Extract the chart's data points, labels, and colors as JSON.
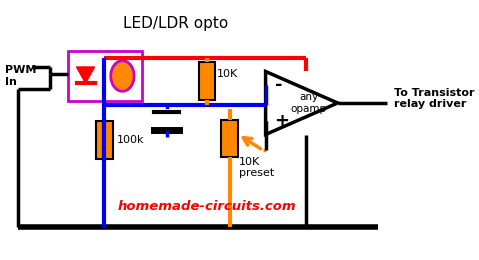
{
  "title": "LED/LDR opto",
  "pwm_label": "PWM\nIn",
  "resistor1_label": "10K",
  "resistor2_label": "100k",
  "resistor3_label": "10K\npreset",
  "opamp_label": "any\nopamp",
  "output_label": "To Transistor\nrelay driver",
  "website": "homemade-circuits.com",
  "colors": {
    "red_wire": "#ff0000",
    "blue_wire": "#0000ee",
    "orange_component": "#ff8800",
    "black_wire": "#000000",
    "purple_box": "#cc00cc",
    "background": "#ffffff",
    "title_color": "#000000",
    "website_color": "#ff0000"
  }
}
